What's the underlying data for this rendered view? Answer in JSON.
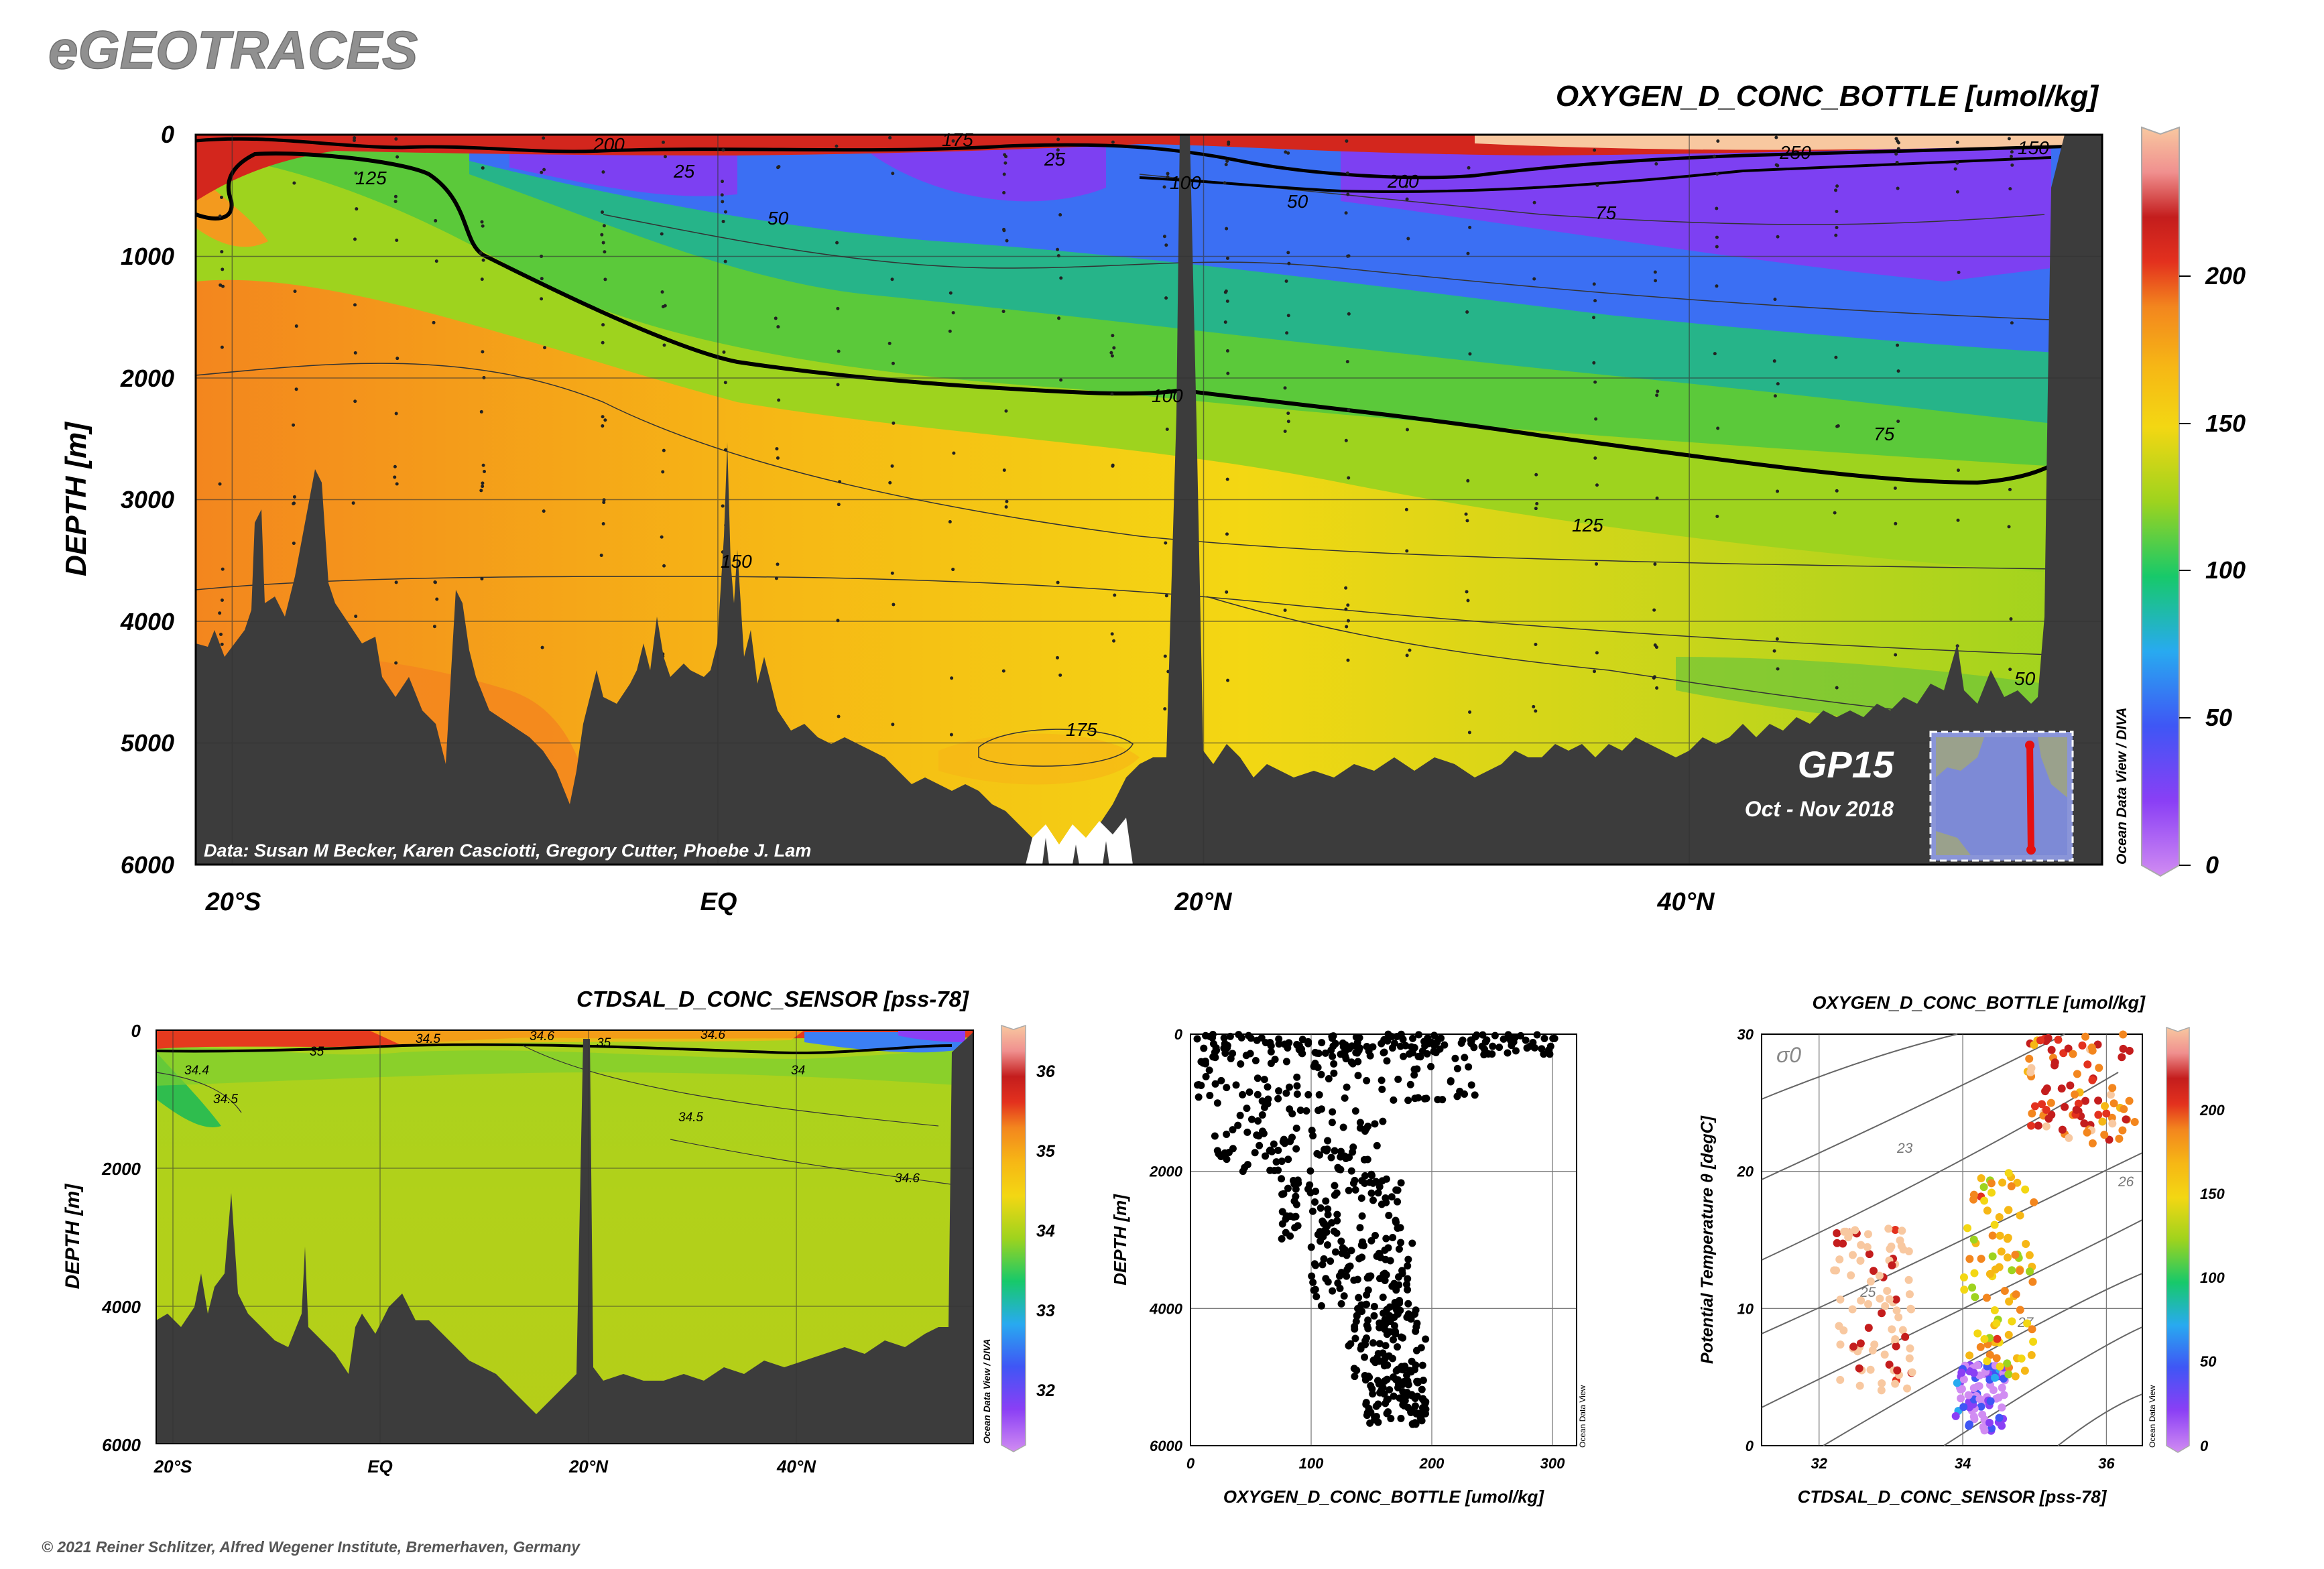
{
  "header": {
    "brand": "eGEOTRACES",
    "copyright": "© 2021 Reiner Schlitzer, Alfred Wegener Institute, Bremerhaven, Germany"
  },
  "chart_data": [
    {
      "id": "main-section",
      "type": "heatmap",
      "title": "OXYGEN_D_CONC_BOTTLE [umol/kg]",
      "ylabel": "DEPTH [m]",
      "xticks": [
        "20°S",
        "EQ",
        "20°N",
        "40°N"
      ],
      "xtick_lat": [
        -20,
        0,
        20,
        40
      ],
      "xlim_lat": [
        -21.5,
        57
      ],
      "yticks": [
        0,
        1000,
        2000,
        3000,
        4000,
        5000,
        6000
      ],
      "ylim": [
        6000,
        0
      ],
      "colorbar": {
        "ticks": [
          0,
          50,
          100,
          150,
          200
        ],
        "range": [
          0,
          245
        ]
      },
      "contour_labels": [
        "200",
        "175",
        "25",
        "25",
        "125",
        "100",
        "200",
        "50",
        "50",
        "75",
        "250",
        "150",
        "100",
        "75",
        "125",
        "150",
        "175",
        "50"
      ],
      "cruise": "GP15",
      "dates": "Oct - Nov 2018",
      "credit": "Data: Susan M Becker, Karen Casciotti, Gregory Cutter, Phoebe J. Lam",
      "odv_label": "Ocean Data View / DIVA"
    },
    {
      "id": "salinity-section",
      "type": "heatmap",
      "title": "CTDSAL_D_CONC_SENSOR [pss-78]",
      "ylabel": "DEPTH [m]",
      "xticks": [
        "20°S",
        "EQ",
        "20°N",
        "40°N"
      ],
      "yticks": [
        0,
        2000,
        4000,
        6000
      ],
      "ylim": [
        6000,
        0
      ],
      "colorbar": {
        "ticks": [
          32,
          33,
          34,
          35,
          36
        ],
        "range": [
          31.4,
          36.5
        ]
      },
      "contour_labels": [
        "35",
        "34.5",
        "34.6",
        "35",
        "34.6",
        "34.4",
        "34.5",
        "34",
        "34.5",
        "34.6"
      ],
      "odv_label": "Ocean Data View / DIVA"
    },
    {
      "id": "oxygen-profile",
      "type": "scatter",
      "xlabel": "OXYGEN_D_CONC_BOTTLE [umol/kg]",
      "ylabel": "DEPTH [m]",
      "xticks": [
        0,
        100,
        200,
        300
      ],
      "yticks": [
        0,
        2000,
        4000,
        6000
      ],
      "xlim": [
        0,
        320
      ],
      "ylim": [
        6000,
        0
      ],
      "odv_label": "Ocean Data View",
      "depth_bands": [
        {
          "depth": [
            0,
            300
          ],
          "oxygen": [
            5,
            310
          ]
        },
        {
          "depth": [
            300,
            1000
          ],
          "oxygen": [
            5,
            240
          ]
        },
        {
          "depth": [
            1000,
            2000
          ],
          "oxygen": [
            20,
            160
          ]
        },
        {
          "depth": [
            2000,
            3000
          ],
          "oxygen": [
            75,
            175
          ]
        },
        {
          "depth": [
            3000,
            4000
          ],
          "oxygen": [
            100,
            185
          ]
        },
        {
          "depth": [
            4000,
            5000
          ],
          "oxygen": [
            130,
            195
          ]
        },
        {
          "depth": [
            5000,
            5700
          ],
          "oxygen": [
            145,
            195
          ]
        }
      ]
    },
    {
      "id": "ts-diagram",
      "type": "scatter",
      "title": "OXYGEN_D_CONC_BOTTLE [umol/kg]",
      "xlabel": "CTDSAL_D_CONC_SENSOR [pss-78]",
      "ylabel": "Potential Temperature θ [degC]",
      "xticks": [
        32,
        34,
        36
      ],
      "yticks": [
        0,
        10,
        20,
        30
      ],
      "xlim": [
        31.2,
        36.5
      ],
      "ylim": [
        0,
        30
      ],
      "sigma_label": "σ0",
      "isopycnal_labels": [
        "23",
        "25",
        "26",
        "27"
      ],
      "colorbar": {
        "ticks": [
          0,
          50,
          100,
          150,
          200
        ],
        "range": [
          0,
          245
        ]
      },
      "odv_label": "Ocean Data View",
      "water_masses": [
        {
          "salinity": [
            32.2,
            33.3
          ],
          "theta": [
            4,
            16
          ],
          "oxygen": 250
        },
        {
          "salinity": [
            33.9,
            34.6
          ],
          "theta": [
            1,
            6
          ],
          "oxygen": 20
        },
        {
          "salinity": [
            34.0,
            35.0
          ],
          "theta": [
            5,
            20
          ],
          "oxygen": 150
        },
        {
          "salinity": [
            34.9,
            36.4
          ],
          "theta": [
            22,
            30
          ],
          "oxygen": 200
        }
      ]
    }
  ],
  "colors": {
    "seafloor": "#3c3c3c",
    "scale": [
      "#d18cf2",
      "#8a3ff5",
      "#3f56f5",
      "#28aaf0",
      "#17c96a",
      "#9ed31e",
      "#f3d713",
      "#f6b715",
      "#f3861e",
      "#e3311e",
      "#c41d1d",
      "#f8c8a0"
    ]
  }
}
